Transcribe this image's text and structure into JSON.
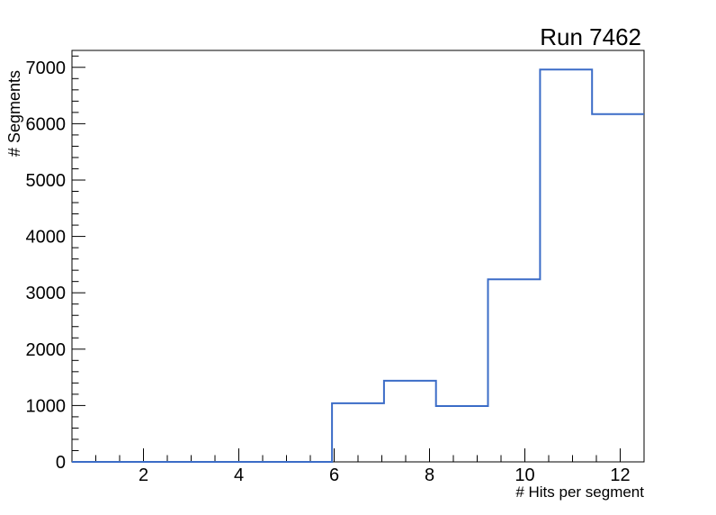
{
  "page": {
    "background": "#ffffff"
  },
  "header": {
    "title": "Run 7462"
  },
  "chart_data": {
    "type": "histogram-step",
    "title": "Run 7462",
    "xlabel": "# Hits per segment",
    "ylabel": "# Segments",
    "xlim": [
      0.5,
      12.5
    ],
    "ylim": [
      0,
      7300
    ],
    "x_major_ticks": [
      2,
      4,
      6,
      8,
      10,
      12
    ],
    "x_minor_step": 0.5,
    "y_major_ticks": [
      0,
      1000,
      2000,
      3000,
      4000,
      5000,
      6000,
      7000
    ],
    "y_minor_step": 200,
    "n_bins": 11,
    "bin_edges": [
      0.5,
      1.5909,
      2.6818,
      3.7727,
      4.8636,
      5.9545,
      7.0455,
      8.1364,
      9.2273,
      10.3182,
      11.4091,
      12.5
    ],
    "values": [
      0,
      0,
      0,
      0,
      0,
      1040,
      1440,
      990,
      3240,
      6960,
      6170
    ],
    "line_color": "#3b6cc7",
    "frame_color": "#000000",
    "text_color": "#000000",
    "grid": false,
    "legend": null,
    "ticks_inside": true
  }
}
